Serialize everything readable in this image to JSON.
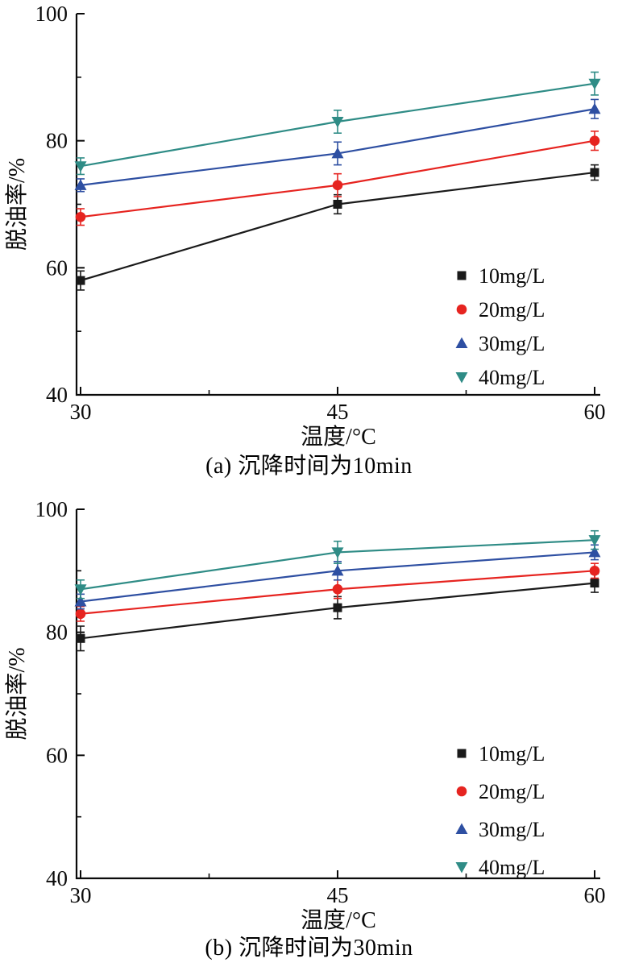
{
  "page": {
    "background": "#ffffff",
    "text_color": "#000000"
  },
  "chart_data": [
    {
      "type": "line",
      "caption": "(a) 沉降时间为10min",
      "xlabel": "温度/°C",
      "ylabel": "脱油率/%",
      "x": [
        30,
        45,
        60
      ],
      "xticks": [
        30,
        45,
        60
      ],
      "ylim": [
        40,
        100
      ],
      "yticks": [
        40,
        60,
        80,
        100
      ],
      "grid": false,
      "legend_position": "lower-right",
      "error_bars": true,
      "series": [
        {
          "name": "10mg/L",
          "marker": "square",
          "color": "#1a1a1a",
          "values": [
            58,
            70,
            75
          ],
          "errors": [
            1.5,
            1.5,
            1.2
          ]
        },
        {
          "name": "20mg/L",
          "marker": "circle",
          "color": "#e62420",
          "values": [
            68,
            73,
            80
          ],
          "errors": [
            1.3,
            1.8,
            1.5
          ]
        },
        {
          "name": "30mg/L",
          "marker": "triangle-up",
          "color": "#2e4fa2",
          "values": [
            73,
            78,
            85
          ],
          "errors": [
            1.0,
            1.8,
            1.5
          ]
        },
        {
          "name": "40mg/L",
          "marker": "triangle-down",
          "color": "#2f8c86",
          "values": [
            76,
            83,
            89
          ],
          "errors": [
            1.3,
            1.8,
            1.8
          ]
        }
      ]
    },
    {
      "type": "line",
      "caption": "(b) 沉降时间为30min",
      "xlabel": "温度/°C",
      "ylabel": "脱油率/%",
      "x": [
        30,
        45,
        60
      ],
      "xticks": [
        30,
        45,
        60
      ],
      "ylim": [
        40,
        100
      ],
      "yticks": [
        40,
        60,
        80,
        100
      ],
      "grid": false,
      "legend_position": "lower-right",
      "error_bars": true,
      "series": [
        {
          "name": "10mg/L",
          "marker": "square",
          "color": "#1a1a1a",
          "values": [
            79,
            84,
            88
          ],
          "errors": [
            2.0,
            1.8,
            1.5
          ]
        },
        {
          "name": "20mg/L",
          "marker": "circle",
          "color": "#e62420",
          "values": [
            83,
            87,
            90
          ],
          "errors": [
            1.2,
            1.5,
            1.2
          ]
        },
        {
          "name": "30mg/L",
          "marker": "triangle-up",
          "color": "#2e4fa2",
          "values": [
            85,
            90,
            93
          ],
          "errors": [
            1.2,
            1.5,
            1.2
          ]
        },
        {
          "name": "40mg/L",
          "marker": "triangle-down",
          "color": "#2f8c86",
          "values": [
            87,
            93,
            95
          ],
          "errors": [
            1.5,
            1.8,
            1.5
          ]
        }
      ]
    }
  ]
}
